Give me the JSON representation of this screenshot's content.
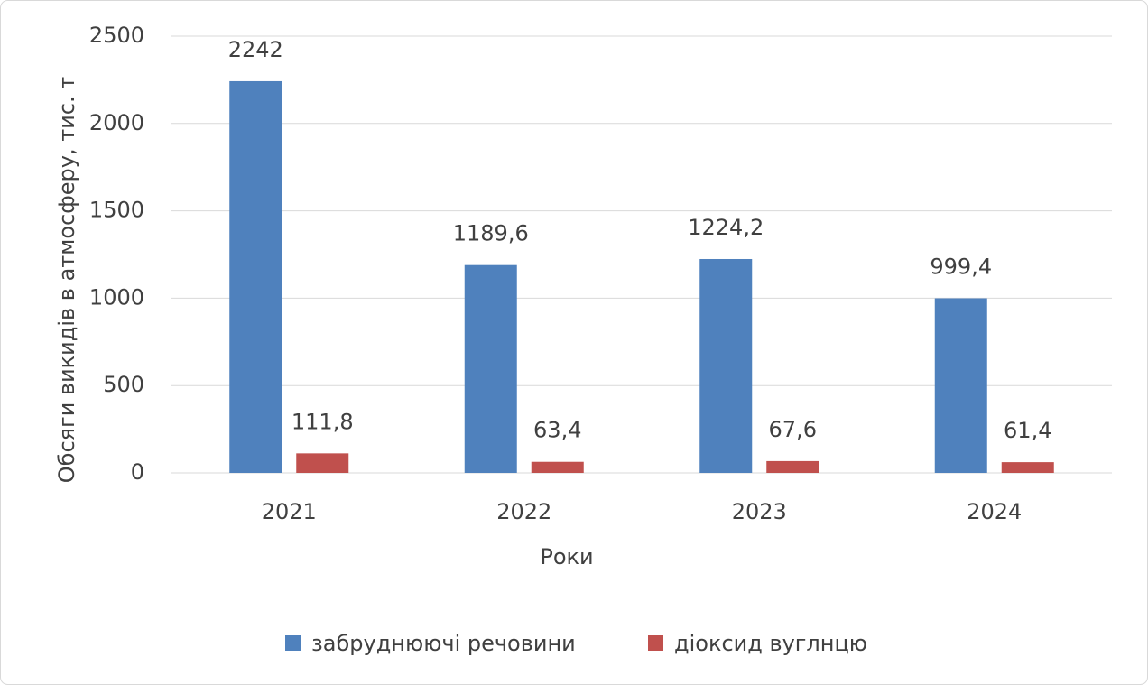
{
  "chart_data": {
    "type": "bar",
    "categories": [
      "2021",
      "2022",
      "2023",
      "2024"
    ],
    "series": [
      {
        "name": "забруднюючі речовини",
        "color": "#4f81bd",
        "values": [
          2242,
          1189.6,
          1224.2,
          999.4
        ],
        "value_labels": [
          "2242",
          "1189,6",
          "1224,2",
          "999,4"
        ]
      },
      {
        "name": "діоксид вуглнцю",
        "color": "#c0504d",
        "values": [
          111.8,
          63.4,
          67.6,
          61.4
        ],
        "value_labels": [
          "111,8",
          "63,4",
          "67,6",
          "61,4"
        ]
      }
    ],
    "ylim": [
      0,
      2500
    ],
    "yticks": [
      0,
      500,
      1000,
      1500,
      2000,
      2500
    ],
    "grid": true,
    "xlabel": "Роки",
    "ylabel": "Обсяги викидів в атмосферу, тис. т",
    "legend": "bottom"
  }
}
